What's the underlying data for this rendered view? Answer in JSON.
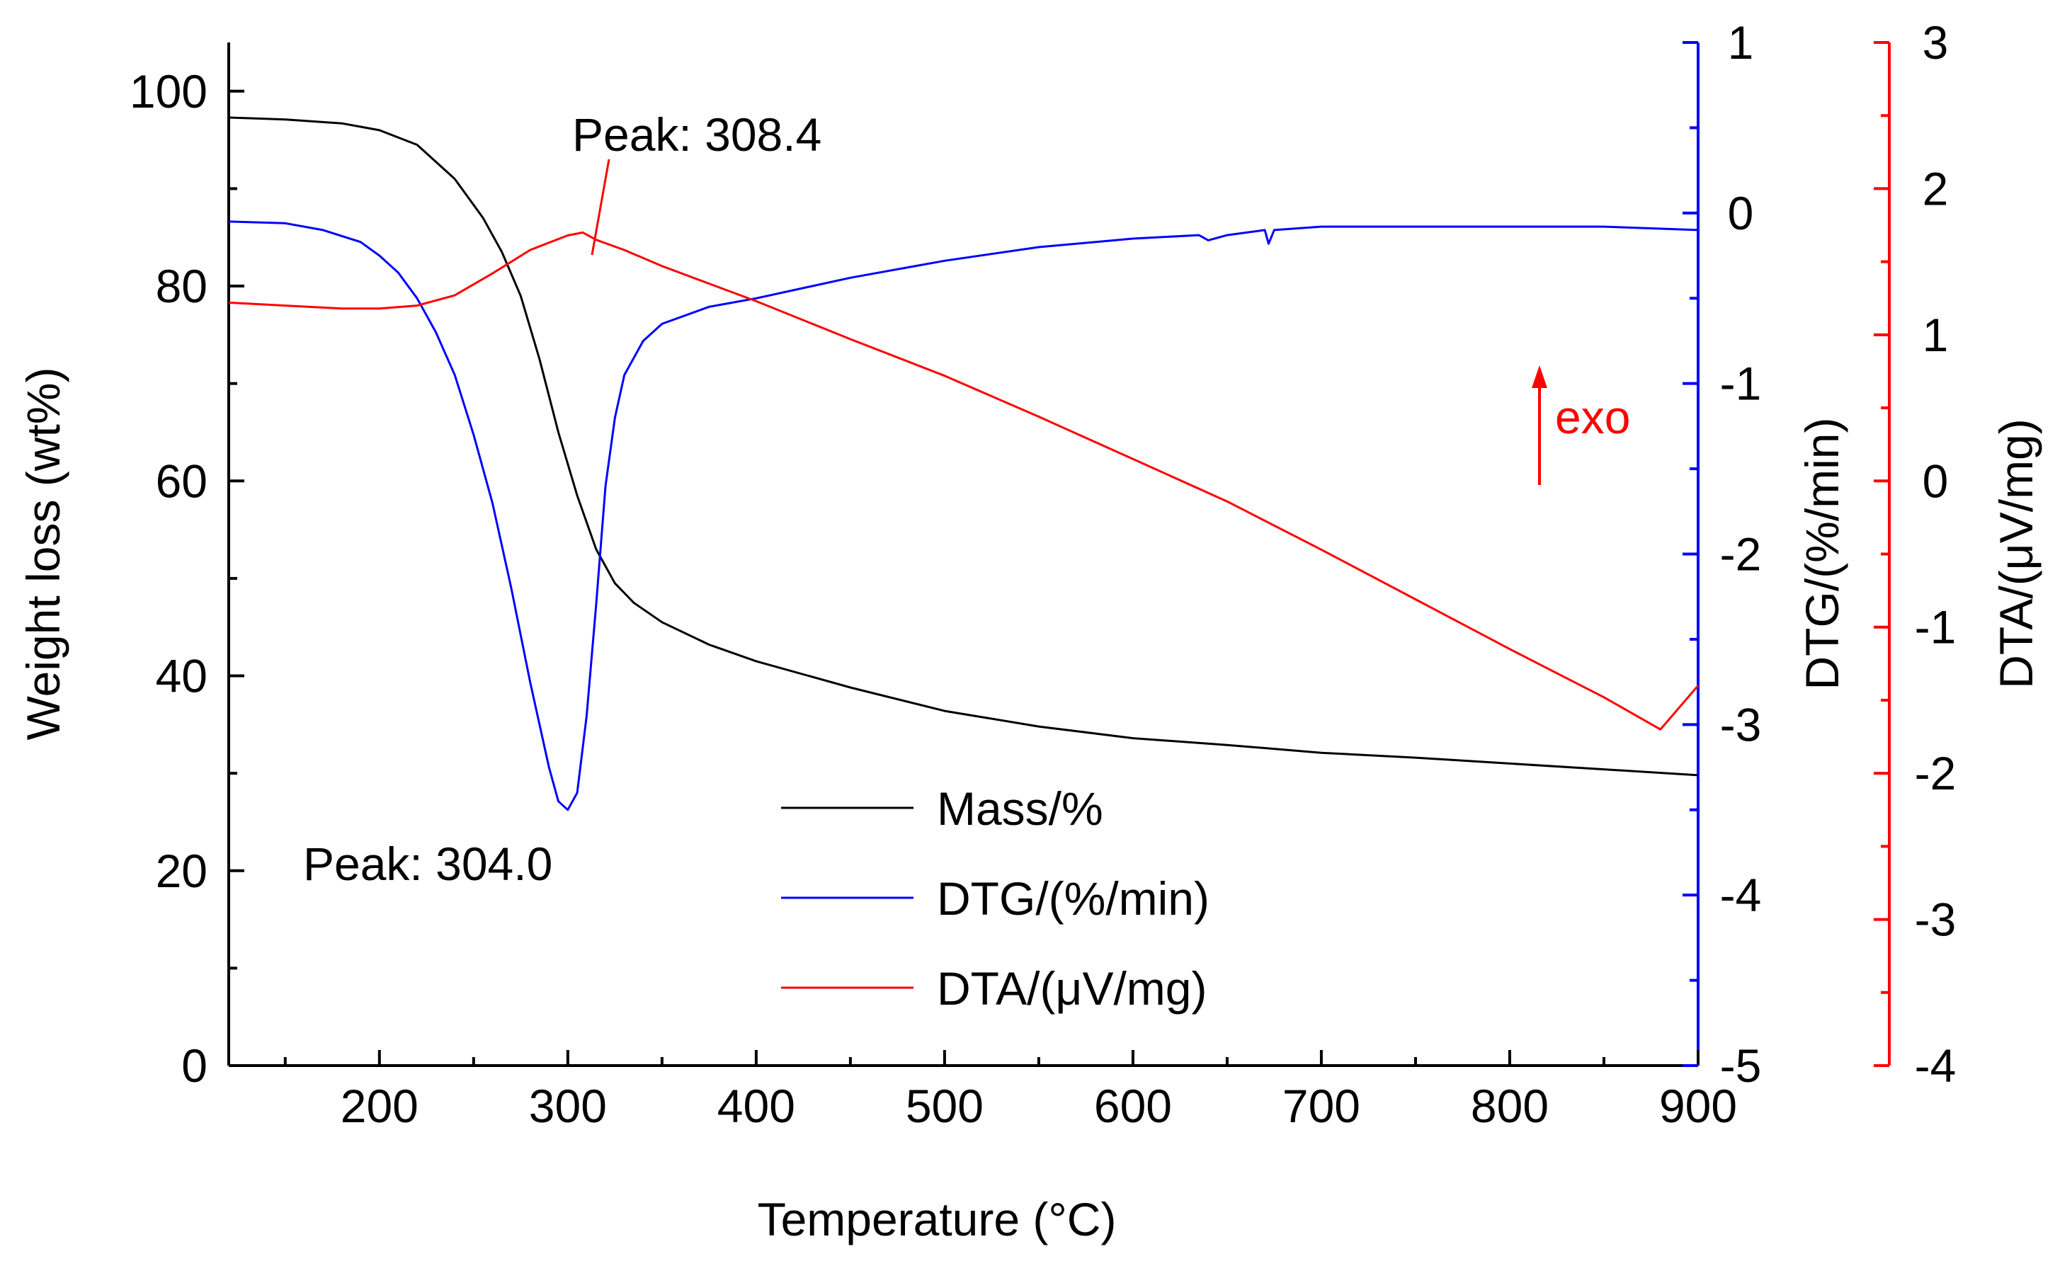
{
  "chart_data": {
    "type": "line",
    "title": "",
    "xlabel": "Temperature (°C)",
    "xlim": [
      120,
      900
    ],
    "x_ticks": [
      200,
      300,
      400,
      500,
      600,
      700,
      800,
      900
    ],
    "axes": {
      "left": {
        "label": "Weight loss (wt%)",
        "ylim": [
          0,
          105
        ],
        "ticks": [
          0,
          20,
          40,
          60,
          80,
          100
        ],
        "color": "#000000"
      },
      "right1": {
        "label": "DTG/(%/min)",
        "ylim": [
          -5,
          1
        ],
        "ticks": [
          1,
          0,
          -1,
          -2,
          -3,
          -4,
          -5
        ],
        "color": "#0000ff"
      },
      "right2": {
        "label": "DTA/(μV/mg)",
        "ylim": [
          -4,
          3
        ],
        "ticks": [
          3,
          2,
          1,
          0,
          -1,
          -2,
          -3,
          -4
        ],
        "color": "#ff0000"
      }
    },
    "series": [
      {
        "name": "Mass/%",
        "axis": "left",
        "color": "#000000",
        "x": [
          120,
          150,
          180,
          200,
          220,
          240,
          255,
          265,
          275,
          285,
          295,
          305,
          315,
          325,
          335,
          350,
          375,
          400,
          450,
          500,
          550,
          600,
          650,
          700,
          750,
          800,
          850,
          900
        ],
        "y": [
          97.3,
          97.1,
          96.7,
          96.0,
          94.5,
          91.0,
          87.0,
          83.5,
          79.0,
          72.5,
          65.0,
          58.5,
          53.0,
          49.5,
          47.5,
          45.5,
          43.2,
          41.5,
          38.8,
          36.4,
          34.8,
          33.6,
          32.9,
          32.1,
          31.6,
          31.0,
          30.4,
          29.8
        ]
      },
      {
        "name": "DTG/(%/min)",
        "axis": "right1",
        "color": "#0000ff",
        "x": [
          120,
          150,
          170,
          190,
          200,
          210,
          220,
          230,
          240,
          250,
          260,
          270,
          280,
          290,
          295,
          300,
          305,
          310,
          315,
          320,
          325,
          330,
          340,
          350,
          375,
          400,
          450,
          500,
          550,
          600,
          635,
          640,
          650,
          670,
          672,
          675,
          700,
          750,
          800,
          850,
          900
        ],
        "y": [
          -0.05,
          -0.06,
          -0.1,
          -0.17,
          -0.25,
          -0.35,
          -0.5,
          -0.7,
          -0.95,
          -1.3,
          -1.7,
          -2.2,
          -2.75,
          -3.25,
          -3.45,
          -3.5,
          -3.4,
          -2.95,
          -2.3,
          -1.6,
          -1.2,
          -0.95,
          -0.75,
          -0.65,
          -0.55,
          -0.5,
          -0.38,
          -0.28,
          -0.2,
          -0.15,
          -0.13,
          -0.16,
          -0.13,
          -0.1,
          -0.18,
          -0.1,
          -0.08,
          -0.08,
          -0.08,
          -0.08,
          -0.1
        ]
      },
      {
        "name": "DTA/(μV/mg)",
        "axis": "right2",
        "color": "#ff0000",
        "x": [
          120,
          150,
          180,
          200,
          220,
          240,
          260,
          280,
          300,
          308,
          315,
          330,
          350,
          400,
          450,
          500,
          550,
          600,
          650,
          700,
          750,
          800,
          850,
          880,
          900
        ],
        "y": [
          1.22,
          1.2,
          1.18,
          1.18,
          1.2,
          1.27,
          1.42,
          1.58,
          1.68,
          1.7,
          1.65,
          1.58,
          1.47,
          1.23,
          0.97,
          0.72,
          0.44,
          0.15,
          -0.14,
          -0.47,
          -0.81,
          -1.15,
          -1.48,
          -1.7,
          -1.4
        ]
      }
    ],
    "annotations": [
      {
        "text": "Peak: 308.4",
        "points_to_x": 308.4,
        "series": "DTA/(μV/mg)"
      },
      {
        "text": "Peak: 304.0",
        "points_to_x": 304.0,
        "series": "DTG/(%/min)"
      },
      {
        "text": "exo",
        "color": "#ff0000",
        "arrow": "up"
      }
    ],
    "legend": {
      "placement": "bottom-center",
      "entries": [
        "Mass/%",
        "DTG/(%/min)",
        "DTA/(μV/mg)"
      ]
    },
    "grid": false
  }
}
